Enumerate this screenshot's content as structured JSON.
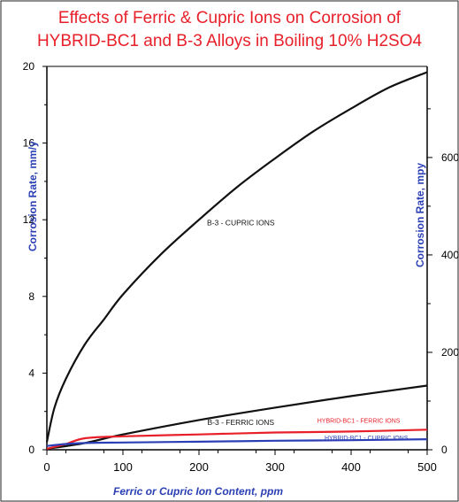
{
  "chart_data": {
    "type": "line",
    "title": "Effects of Ferric & Cupric Ions on Corrosion of",
    "subtitle": "HYBRID-BC1 and B-3 Alloys in Boiling 10% H2SO4",
    "xlabel": "Ferric or Cupric Ion Content, ppm",
    "ylabel_left": "Corrosion Rate, mm/y",
    "ylabel_right": "Corrosion Rate, mpy",
    "xlim": [
      0,
      500
    ],
    "ylim": [
      0,
      20
    ],
    "ylim_right": [
      0,
      787
    ],
    "x_ticks": [
      "0",
      "100",
      "200",
      "300",
      "400",
      "500"
    ],
    "y_ticks_left": [
      "0",
      "4",
      "8",
      "12",
      "16",
      "20"
    ],
    "y_ticks_right": [
      "0",
      "200",
      "400",
      "600"
    ],
    "y_tick_values_left": [
      0,
      4,
      8,
      12,
      16,
      20
    ],
    "y_tick_values_right": [
      0,
      200,
      400,
      600
    ],
    "grid": false,
    "colors": {
      "title": "#e8202a",
      "axis_label": "#2b3fb5",
      "b3_cupric": "#111111",
      "b3_ferric": "#111111",
      "hybrid_ferric": "#e8202a",
      "hybrid_cupric": "#2b3fb5"
    },
    "series": [
      {
        "name": "B-3 - CUPRIC IONS",
        "color": "#111111",
        "x": [
          0,
          10,
          25,
          50,
          75,
          100,
          150,
          200,
          250,
          300,
          350,
          400,
          450,
          500
        ],
        "y": [
          0.4,
          2.2,
          3.7,
          5.5,
          6.8,
          8.1,
          10.2,
          12.0,
          13.7,
          15.2,
          16.6,
          17.8,
          18.9,
          19.7
        ]
      },
      {
        "name": "B-3 - FERRIC IONS",
        "color": "#111111",
        "x": [
          0,
          50,
          100,
          200,
          300,
          400,
          500
        ],
        "y": [
          0.05,
          0.35,
          0.8,
          1.55,
          2.2,
          2.8,
          3.35
        ]
      },
      {
        "name": "HYBRID-BC1 - FERRIC IONS",
        "color": "#e8202a",
        "x": [
          0,
          25,
          50,
          100,
          200,
          300,
          400,
          500
        ],
        "y": [
          0.05,
          0.3,
          0.6,
          0.7,
          0.8,
          0.9,
          0.95,
          1.05
        ]
      },
      {
        "name": "HYBRID-BC1 - CUPRIC IONS",
        "color": "#2b3fb5",
        "x": [
          0,
          25,
          50,
          100,
          200,
          300,
          400,
          500
        ],
        "y": [
          0.2,
          0.3,
          0.35,
          0.38,
          0.42,
          0.47,
          0.5,
          0.55
        ]
      }
    ],
    "annotations": [
      {
        "text": "B-3 - CUPRIC IONS",
        "x": 255,
        "y": 11.7,
        "color": "#111111"
      },
      {
        "text": "B-3 - FERRIC IONS",
        "x": 255,
        "y": 1.3,
        "color": "#111111"
      },
      {
        "text": "HYBRID-BC1 - FERRIC IONS",
        "x": 410,
        "y": 1.4,
        "color": "#e8202a"
      },
      {
        "text": "HYBRID-BC1 - CUPRIC IONS",
        "x": 420,
        "y": 0.5,
        "color": "#2b3fb5"
      }
    ]
  }
}
